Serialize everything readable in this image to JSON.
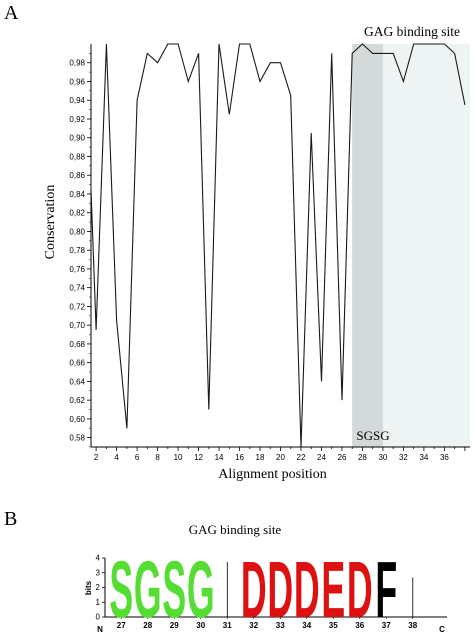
{
  "panel_a_label": "A",
  "panel_b_label": "B",
  "chart_data": [
    {
      "type": "line",
      "xlabel": "Alignment position",
      "ylabel": "Conservation",
      "xlim": [
        1.5,
        38.5
      ],
      "ylim": [
        0.57,
        1.0
      ],
      "x_ticks": [
        2,
        4,
        6,
        8,
        10,
        12,
        14,
        16,
        18,
        20,
        22,
        24,
        26,
        28,
        30,
        32,
        34,
        36
      ],
      "y_ticks": [
        "0,58",
        "0,60",
        "0,62",
        "0,64",
        "0,66",
        "0,68",
        "0,70",
        "0,72",
        "0,74",
        "0,76",
        "0,78",
        "0,80",
        "0,82",
        "0,84",
        "0,86",
        "0,88",
        "0,90",
        "0,92",
        "0,94",
        "0,96",
        "0,98"
      ],
      "x": [
        1,
        2,
        3,
        4,
        5,
        6,
        7,
        8,
        9,
        10,
        11,
        12,
        13,
        14,
        15,
        16,
        17,
        18,
        19,
        20,
        21,
        22,
        23,
        24,
        25,
        26,
        27,
        28,
        29,
        30,
        31,
        32,
        33,
        34,
        35,
        36,
        37,
        38
      ],
      "values": [
        0.995,
        0.695,
        1.0,
        0.705,
        0.59,
        0.94,
        0.99,
        0.98,
        1.0,
        1.0,
        0.96,
        0.99,
        0.61,
        1.0,
        0.925,
        1.0,
        1.0,
        0.96,
        0.98,
        0.98,
        0.945,
        0.57,
        0.905,
        0.64,
        0.99,
        0.62,
        0.99,
        1.0,
        0.99,
        0.99,
        0.99,
        0.96,
        1.0,
        1.0,
        1.0,
        1.0,
        0.99,
        0.935
      ],
      "annotations": [
        {
          "text": "GAG binding site",
          "x_range": [
            27,
            38.5
          ]
        },
        {
          "text": "SGSG",
          "x_range": [
            27,
            30
          ]
        }
      ],
      "colors": {
        "line": "#1a1a1a",
        "sgsg_region": "#d4d9d9",
        "gag_region": "#eef3f3"
      }
    },
    {
      "type": "sequence-logo",
      "title": "GAG binding site",
      "ylabel": "bits",
      "ylim": [
        0,
        4
      ],
      "y_ticks": [
        "0",
        "1",
        "2",
        "3",
        "4"
      ],
      "n_label": "N",
      "c_label": "C",
      "positions": [
        "27",
        "28",
        "29",
        "30",
        "31",
        "32",
        "33",
        "34",
        "35",
        "36",
        "37",
        "38"
      ],
      "letters": [
        "S",
        "G",
        "S",
        "G",
        "I",
        "D",
        "D",
        "D",
        "E",
        "D",
        "F",
        "I"
      ],
      "heights": [
        3.95,
        3.95,
        3.95,
        3.95,
        3.9,
        3.9,
        3.9,
        3.9,
        3.9,
        3.9,
        3.9,
        2.8
      ],
      "letter_colors": [
        "#55dd33",
        "#55dd33",
        "#55dd33",
        "#55dd33",
        "#000000",
        "#dd1111",
        "#dd1111",
        "#dd1111",
        "#dd1111",
        "#dd1111",
        "#000000",
        "#000000"
      ]
    }
  ]
}
